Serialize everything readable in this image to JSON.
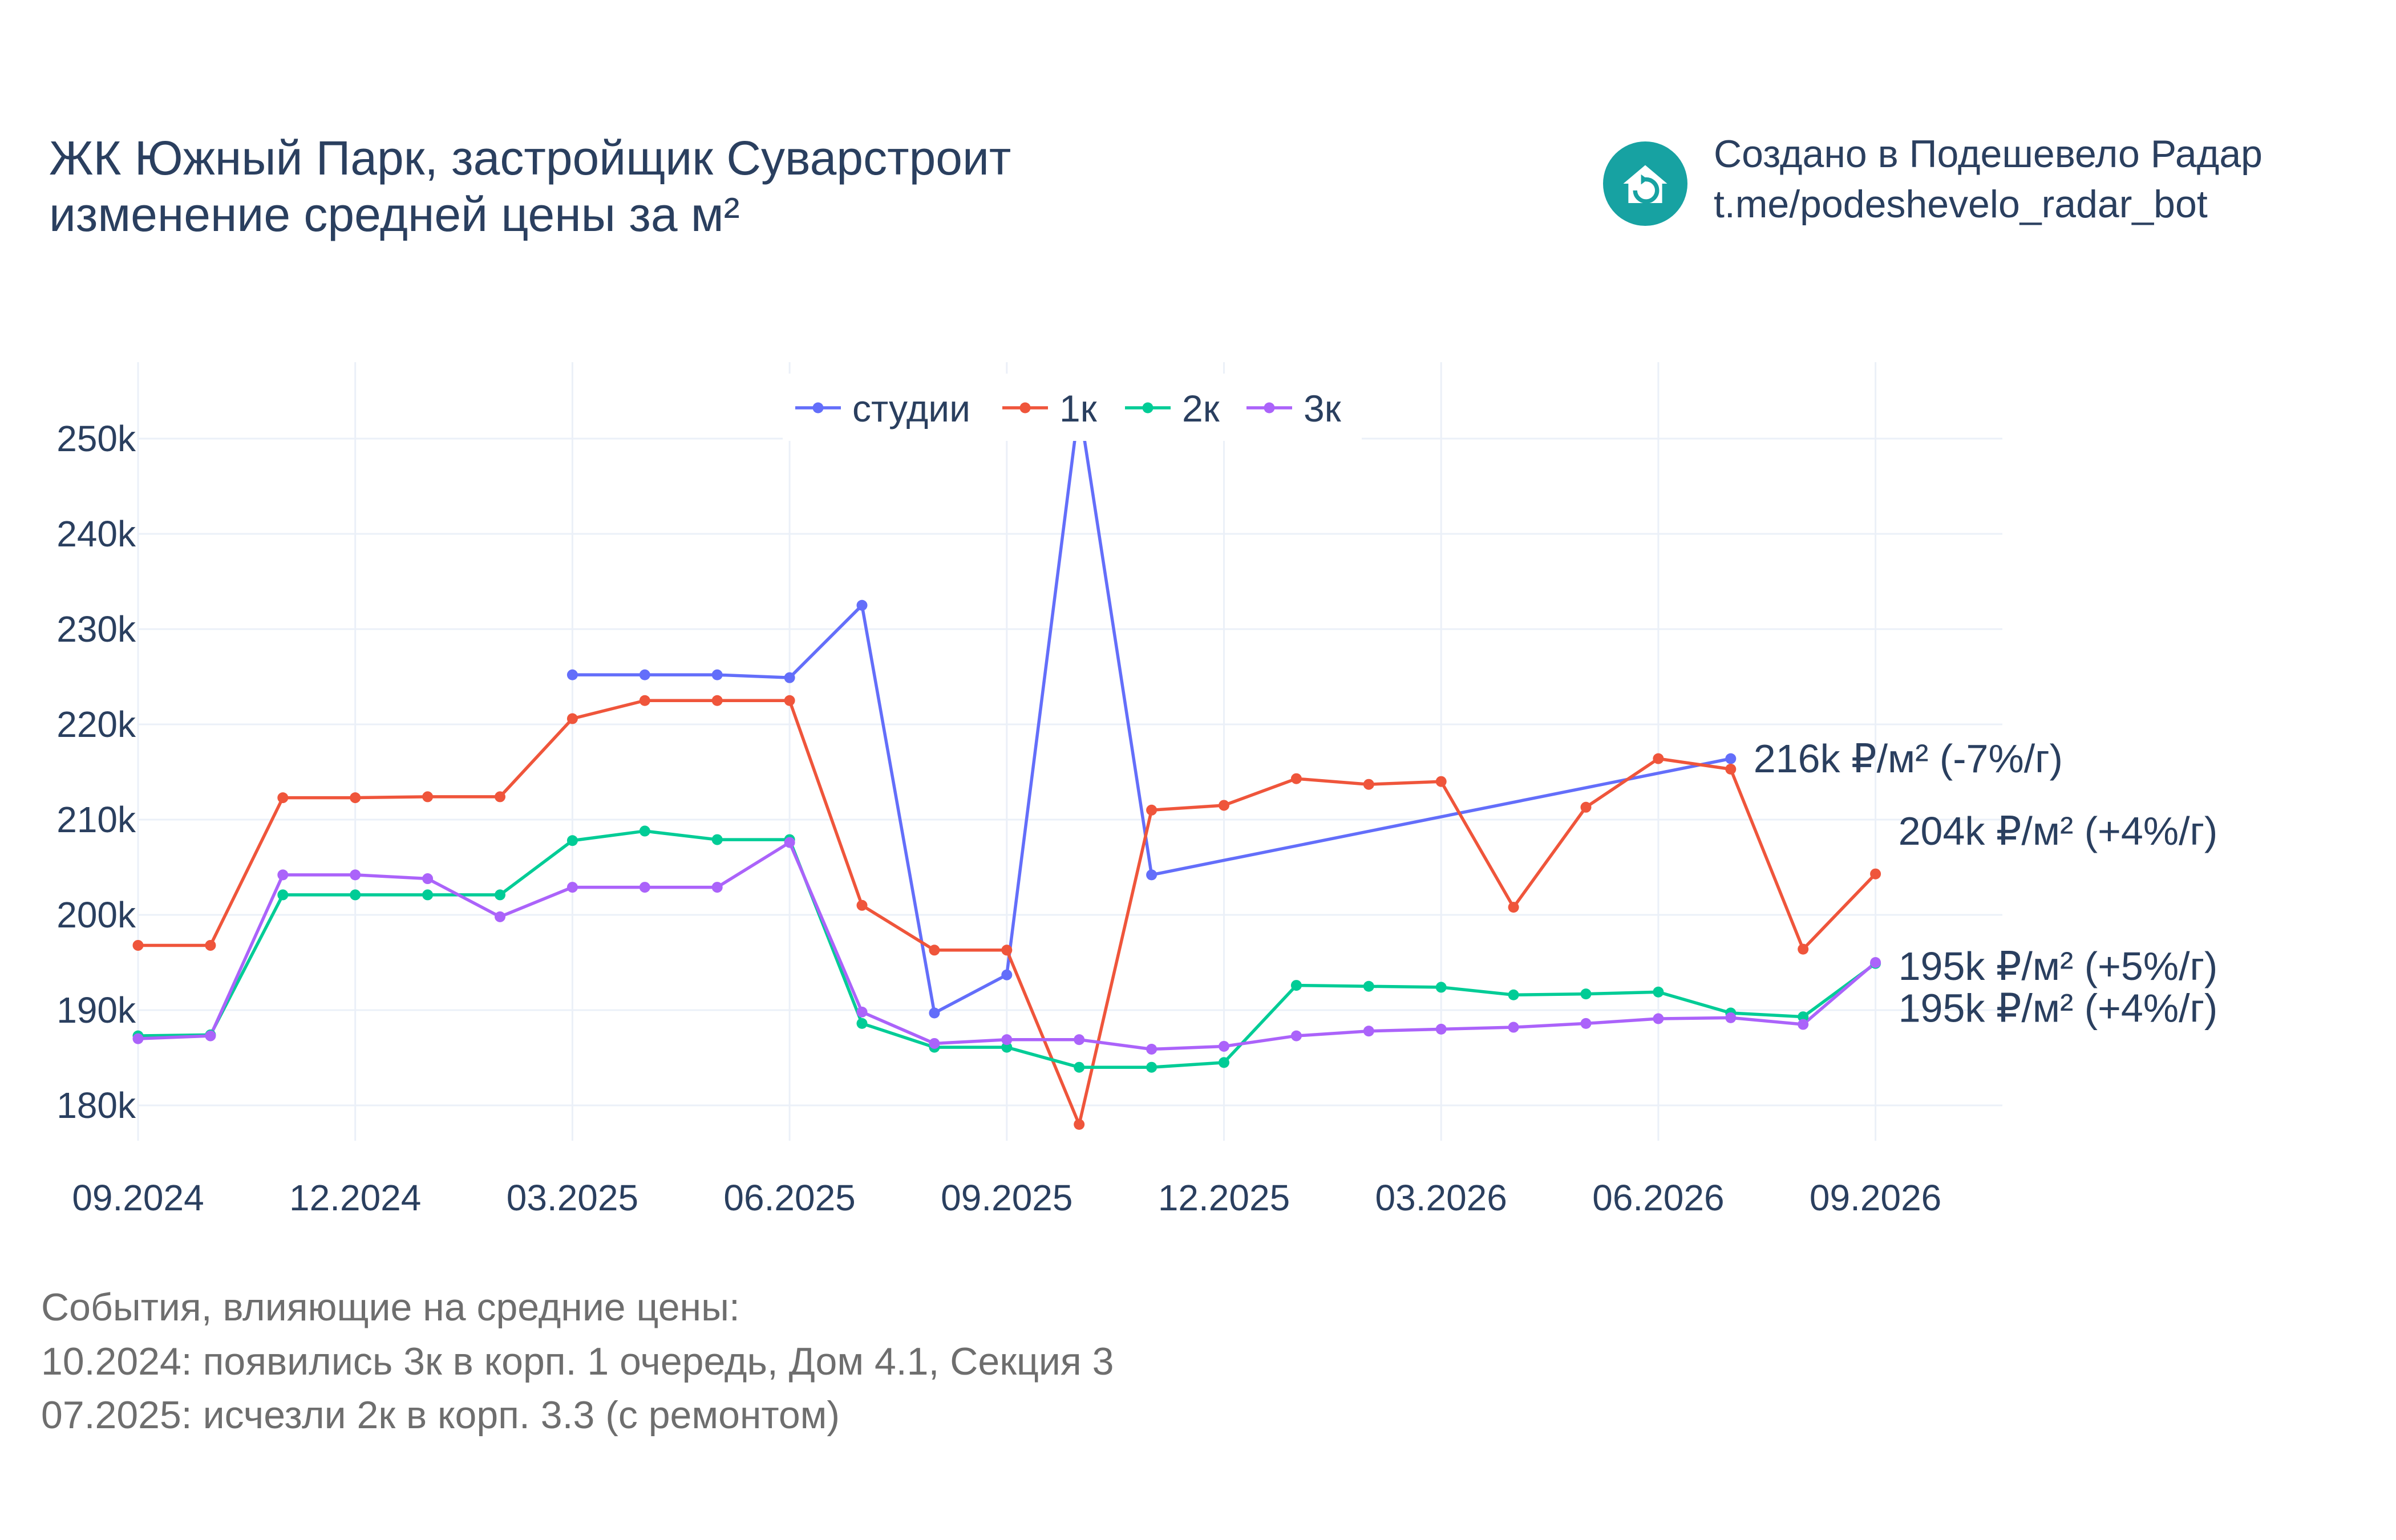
{
  "header": {
    "title_line1": "ЖК Южный Парк, застройщик Суварстроит",
    "title_line2": "изменение средней цены за м²"
  },
  "branding": {
    "line1": "Создано в Подешевело Радар",
    "line2": "t.me/podeshevelo_radar_bot",
    "icon": "house-refresh-icon",
    "icon_color": "#17a2a2"
  },
  "events": {
    "heading": "События, влияющие на средние цены:",
    "items": [
      "10.2024: появились 3к в корп. 1 очередь, Дом 4.1, Секция 3",
      "07.2025: исчезли 2к в корп. 3.3 (с ремонтом)"
    ]
  },
  "chart_data": {
    "type": "line",
    "x": [
      "09.2024",
      "10.2024",
      "11.2024",
      "12.2024",
      "01.2025",
      "02.2025",
      "03.2025",
      "04.2025",
      "05.2025",
      "06.2025",
      "07.2025",
      "08.2025",
      "09.2025",
      "10.2025",
      "11.2025",
      "12.2025",
      "01.2026",
      "02.2026",
      "03.2026",
      "04.2026",
      "05.2026",
      "06.2026",
      "07.2026",
      "08.2026",
      "09.2026"
    ],
    "x_ticks": [
      "09.2024",
      "12.2024",
      "03.2025",
      "06.2025",
      "09.2025",
      "12.2025",
      "03.2026",
      "06.2026",
      "09.2026"
    ],
    "y_ticks": [
      180000,
      190000,
      200000,
      210000,
      220000,
      230000,
      240000,
      250000
    ],
    "y_tick_labels": [
      "180k",
      "190k",
      "200k",
      "210k",
      "220k",
      "230k",
      "240k",
      "250k"
    ],
    "ylim": [
      173000,
      258000
    ],
    "grid": true,
    "legend_position": "top-center",
    "series": [
      {
        "name": "студии",
        "color": "#636efa",
        "values": [
          null,
          null,
          null,
          null,
          null,
          null,
          225200,
          225200,
          225200,
          224900,
          232500,
          189700,
          193700,
          253500,
          204200,
          null,
          null,
          null,
          null,
          null,
          null,
          null,
          216400,
          null,
          null
        ]
      },
      {
        "name": "1к",
        "color": "#ef553b",
        "values": [
          196800,
          196800,
          212300,
          212300,
          212400,
          212400,
          220600,
          222500,
          222500,
          222500,
          201000,
          196300,
          196300,
          178000,
          211000,
          211500,
          214300,
          213700,
          214000,
          200800,
          211300,
          216400,
          215300,
          196400,
          204300
        ]
      },
      {
        "name": "2к",
        "color": "#00cc96",
        "values": [
          187300,
          187400,
          202100,
          202100,
          202100,
          202100,
          207800,
          208800,
          207900,
          207900,
          188600,
          186100,
          186100,
          184000,
          184000,
          184500,
          192600,
          192500,
          192400,
          191600,
          191700,
          191900,
          189700,
          189300,
          194900
        ]
      },
      {
        "name": "3к",
        "color": "#ab63fa",
        "values": [
          187000,
          187300,
          204200,
          204200,
          203800,
          199800,
          202900,
          202900,
          202900,
          207600,
          189800,
          186500,
          186900,
          186900,
          185900,
          186200,
          187300,
          187800,
          188000,
          188200,
          188600,
          189100,
          189200,
          188500,
          195000
        ]
      }
    ],
    "annotations": [
      {
        "text": "216k ₽/м² (-7%/г)",
        "series": "студии",
        "x": "07.2026",
        "y": 216400
      },
      {
        "text": "204k ₽/м² (+4%/г)",
        "series": "1к",
        "x": "09.2026",
        "y": 208800
      },
      {
        "text": "195k ₽/м² (+5%/г)",
        "series": "2к",
        "x": "09.2026",
        "y": 194600
      },
      {
        "text": "195k ₽/м² (+4%/г)",
        "series": "3к",
        "x": "09.2026",
        "y": 190200
      }
    ]
  }
}
